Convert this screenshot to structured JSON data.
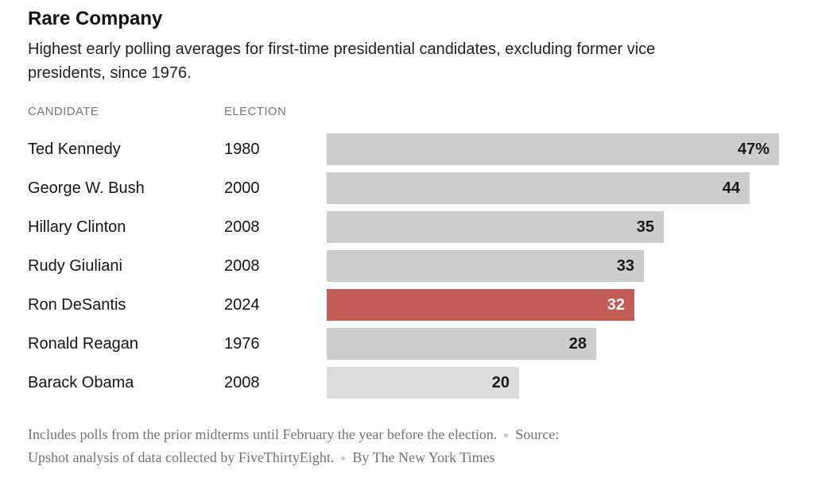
{
  "header": {
    "title": "Rare Company",
    "subtitle_lines": [
      "Highest early polling averages for first-time presidential candidates, excluding former vice",
      "presidents, since 1976."
    ]
  },
  "table": {
    "columns": [
      "CANDIDATE",
      "ELECTION"
    ]
  },
  "chart_data": {
    "type": "bar",
    "orientation": "horizontal",
    "title": "Rare Company",
    "subtitle": "Highest early polling averages for first-time presidential candidates, excluding former vice presidents, since 1976.",
    "columns": [
      "CANDIDATE",
      "ELECTION"
    ],
    "xlim": [
      0,
      47
    ],
    "grid": false,
    "legend": false,
    "value_labels_inside_bar": true,
    "palette": {
      "bar_default": "#cdcdcd",
      "bar_highlight": "#c35c55",
      "bar_muted": "#dcdcdc",
      "value_default": "#1a1a1a",
      "value_on_highlight": "#ffffff"
    },
    "rows": [
      {
        "candidate": "Ted Kennedy",
        "election": "1980",
        "value": 47,
        "value_label": "47%",
        "tone": "default"
      },
      {
        "candidate": "George W. Bush",
        "election": "2000",
        "value": 44,
        "value_label": "44",
        "tone": "default"
      },
      {
        "candidate": "Hillary Clinton",
        "election": "2008",
        "value": 35,
        "value_label": "35",
        "tone": "default"
      },
      {
        "candidate": "Rudy Giuliani",
        "election": "2008",
        "value": 33,
        "value_label": "33",
        "tone": "default"
      },
      {
        "candidate": "Ron DeSantis",
        "election": "2024",
        "value": 32,
        "value_label": "32",
        "tone": "highlight"
      },
      {
        "candidate": "Ronald Reagan",
        "election": "1976",
        "value": 28,
        "value_label": "28",
        "tone": "default"
      },
      {
        "candidate": "Barack Obama",
        "election": "2008",
        "value": 20,
        "value_label": "20",
        "tone": "muted"
      }
    ]
  },
  "footer": {
    "note": "Includes polls from the prior midterms until February the year before the election.",
    "source_label": "Source:",
    "source_rest": "Upshot analysis of data collected by FiveThirtyEight.",
    "byline": "By The New York Times"
  }
}
